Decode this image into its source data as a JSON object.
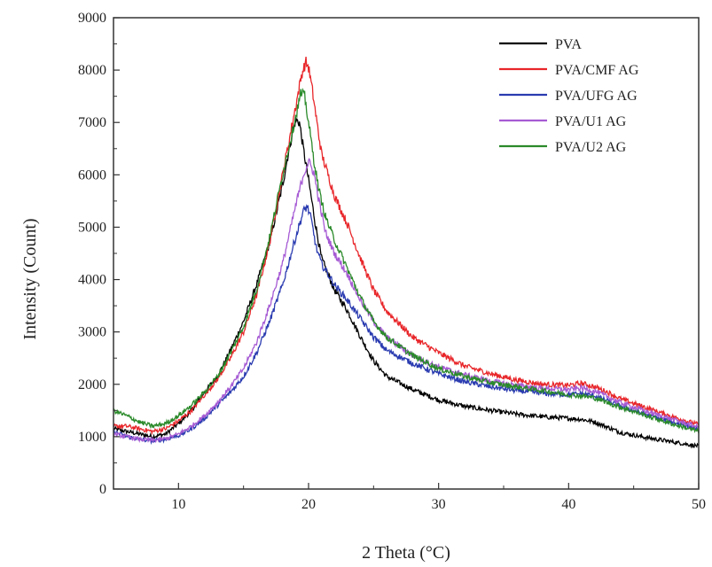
{
  "chart_data": {
    "type": "line",
    "title": "",
    "xlabel": "2 Theta (°C)",
    "ylabel": "Intensity (Count)",
    "xlim": [
      5,
      50
    ],
    "ylim": [
      0,
      9000
    ],
    "xticks": [
      10,
      20,
      30,
      40,
      50
    ],
    "yticks": [
      0,
      1000,
      2000,
      3000,
      4000,
      5000,
      6000,
      7000,
      8000,
      9000
    ],
    "grid": false,
    "legend_position": "top-right",
    "series": [
      {
        "name": "PVA",
        "color": "#000000",
        "x": [
          5,
          6,
          7,
          8,
          9,
          10,
          11,
          12,
          13,
          14,
          15,
          16,
          17,
          18,
          18.5,
          19,
          19.3,
          19.6,
          20,
          20.5,
          21,
          22,
          23,
          24,
          25,
          26,
          28,
          30,
          32,
          34,
          36,
          38,
          40,
          41,
          42,
          43,
          44,
          46,
          48,
          50
        ],
        "y": [
          1150,
          1100,
          1050,
          1000,
          1050,
          1250,
          1500,
          1850,
          2150,
          2650,
          3200,
          3900,
          4700,
          5800,
          6500,
          7050,
          7000,
          6500,
          5900,
          5100,
          4400,
          3800,
          3400,
          2900,
          2450,
          2150,
          1900,
          1700,
          1580,
          1500,
          1430,
          1380,
          1350,
          1330,
          1280,
          1180,
          1080,
          980,
          900,
          820
        ]
      },
      {
        "name": "PVA/CMF AG",
        "color": "#e8262a",
        "x": [
          5,
          6,
          7,
          8,
          9,
          10,
          11,
          12,
          13,
          14,
          15,
          16,
          17,
          18,
          19,
          19.5,
          19.8,
          20,
          20.3,
          20.7,
          21,
          22,
          23,
          24,
          25,
          26,
          28,
          30,
          32,
          34,
          36,
          38,
          40,
          41,
          42,
          43,
          44,
          46,
          48,
          50
        ],
        "y": [
          1200,
          1200,
          1150,
          1100,
          1150,
          1300,
          1500,
          1800,
          2100,
          2500,
          3000,
          3700,
          4700,
          6000,
          7300,
          7950,
          8150,
          8050,
          7600,
          6900,
          6400,
          5600,
          5050,
          4400,
          3800,
          3400,
          2900,
          2600,
          2350,
          2200,
          2080,
          2000,
          1980,
          2020,
          1950,
          1850,
          1720,
          1550,
          1380,
          1230
        ]
      },
      {
        "name": "PVA/UFG AG",
        "color": "#2a3bb0",
        "x": [
          5,
          6,
          7,
          8,
          9,
          10,
          11,
          12,
          13,
          14,
          15,
          16,
          17,
          18,
          19,
          19.6,
          19.9,
          20.2,
          20.6,
          21,
          22,
          23,
          24,
          25,
          26,
          28,
          30,
          32,
          34,
          36,
          38,
          40,
          41,
          42,
          43,
          44,
          46,
          48,
          50
        ],
        "y": [
          1100,
          1000,
          950,
          920,
          950,
          1020,
          1150,
          1350,
          1600,
          1850,
          2150,
          2600,
          3200,
          3900,
          4800,
          5300,
          5400,
          5150,
          4600,
          4300,
          3900,
          3600,
          3250,
          2900,
          2650,
          2400,
          2200,
          2050,
          1950,
          1880,
          1830,
          1800,
          1820,
          1780,
          1680,
          1580,
          1420,
          1280,
          1150
        ]
      },
      {
        "name": "PVA/U1 AG",
        "color": "#a65bd4",
        "x": [
          5,
          6,
          7,
          8,
          9,
          10,
          11,
          12,
          13,
          14,
          15,
          16,
          17,
          18,
          19,
          19.6,
          20,
          20.4,
          20.8,
          21.3,
          22,
          23,
          24,
          25,
          26,
          28,
          30,
          32,
          34,
          36,
          38,
          40,
          41,
          42,
          43,
          44,
          46,
          48,
          50
        ],
        "y": [
          1050,
          1000,
          950,
          930,
          960,
          1050,
          1200,
          1400,
          1650,
          1950,
          2300,
          2800,
          3500,
          4300,
          5400,
          6000,
          6250,
          6050,
          5500,
          4900,
          4500,
          4100,
          3600,
          3200,
          2900,
          2550,
          2330,
          2180,
          2060,
          1980,
          1920,
          1900,
          1930,
          1870,
          1760,
          1650,
          1480,
          1330,
          1180
        ]
      },
      {
        "name": "PVA/U2 AG",
        "color": "#2a8a2a",
        "x": [
          5,
          6,
          7,
          8,
          9,
          10,
          11,
          12,
          13,
          14,
          15,
          16,
          17,
          18,
          19,
          19.4,
          19.7,
          20,
          20.4,
          20.8,
          21.3,
          22,
          23,
          24,
          25,
          26,
          28,
          30,
          32,
          34,
          36,
          38,
          40,
          41,
          42,
          43,
          44,
          46,
          48,
          50
        ],
        "y": [
          1500,
          1400,
          1280,
          1200,
          1250,
          1400,
          1600,
          1850,
          2150,
          2600,
          3100,
          3800,
          4800,
          6000,
          7100,
          7550,
          7500,
          7000,
          6300,
          5700,
          5200,
          4750,
          4200,
          3650,
          3200,
          2900,
          2550,
          2300,
          2150,
          2030,
          1950,
          1880,
          1800,
          1780,
          1740,
          1650,
          1560,
          1400,
          1240,
          1100
        ]
      }
    ]
  }
}
